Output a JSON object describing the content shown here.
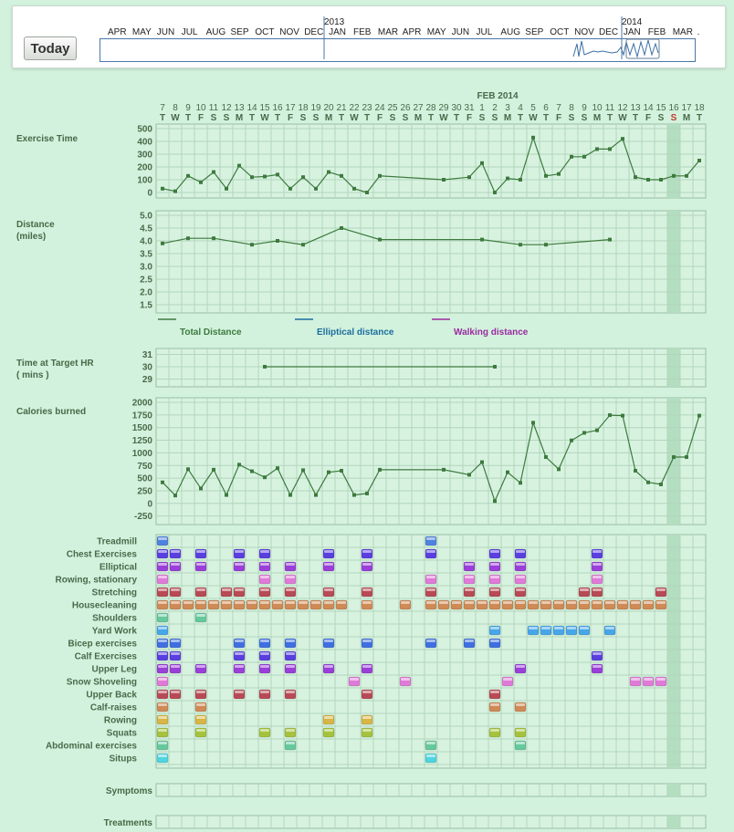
{
  "toolbar": {
    "today_label": "Today"
  },
  "navigator": {
    "months": [
      "APR",
      "MAY",
      "JUN",
      "JUL",
      "AUG",
      "SEP",
      "OCT",
      "NOV",
      "DEC",
      "JAN",
      "FEB",
      "MAR",
      "APR",
      "MAY",
      "JUN",
      "JUL",
      "AUG",
      "SEP",
      "OCT",
      "NOV",
      "DEC",
      "JAN",
      "FEB",
      "MAR",
      "."
    ],
    "years": [
      "2013",
      "2014"
    ]
  },
  "timeline": {
    "month_label": "FEB 2014",
    "day_numbers": [
      "7",
      "8",
      "9",
      "10",
      "11",
      "12",
      "13",
      "14",
      "15",
      "16",
      "17",
      "18",
      "19",
      "20",
      "21",
      "22",
      "23",
      "24",
      "25",
      "26",
      "27",
      "28",
      "29",
      "30",
      "31",
      "1",
      "2",
      "3",
      "4",
      "5",
      "6",
      "7",
      "8",
      "9",
      "10",
      "11",
      "12",
      "13",
      "14",
      "15",
      "16",
      "17",
      "18"
    ],
    "weekdays": [
      "T",
      "W",
      "T",
      "F",
      "S",
      "S",
      "M",
      "T",
      "W",
      "T",
      "F",
      "S",
      "S",
      "M",
      "T",
      "W",
      "T",
      "F",
      "S",
      "S",
      "M",
      "T",
      "W",
      "T",
      "F",
      "S",
      "S",
      "M",
      "T",
      "W",
      "T",
      "F",
      "S",
      "S",
      "M",
      "T",
      "W",
      "T",
      "F",
      "S",
      "S",
      "M",
      "T"
    ],
    "today_index": 40
  },
  "charts": {
    "exercise": {
      "label": "Exercise Time",
      "ticks": [
        "500",
        "400",
        "300",
        "200",
        "100",
        "0"
      ]
    },
    "distance": {
      "label_line1": "Distance",
      "label_line2": "(miles)",
      "ticks": [
        "5.0",
        "4.5",
        "4.0",
        "3.5",
        "3.0",
        "2.5",
        "2.0",
        "1.5"
      ]
    },
    "target_hr": {
      "label_line1": "Time at Target HR",
      "label_line2": "( mins )",
      "ticks": [
        "31",
        "30",
        "29"
      ]
    },
    "calories": {
      "label": "Calories burned",
      "ticks": [
        "2000",
        "1750",
        "1500",
        "1250",
        "1000",
        "750",
        "500",
        "250",
        "0",
        "-250"
      ]
    }
  },
  "legend": {
    "total": {
      "label": "Total Distance",
      "color": "#3e7a3e"
    },
    "elliptical": {
      "label": "Elliptical distance",
      "color": "#1b6d9e"
    },
    "walking": {
      "label": "Walking distance",
      "color": "#9b2aa0"
    }
  },
  "chart_data": [
    {
      "type": "line",
      "title": "Exercise Time",
      "ylim": [
        0,
        500
      ],
      "points": [
        [
          0,
          30
        ],
        [
          1,
          10
        ],
        [
          2,
          130
        ],
        [
          3,
          80
        ],
        [
          4,
          160
        ],
        [
          5,
          30
        ],
        [
          6,
          210
        ],
        [
          7,
          120
        ],
        [
          8,
          125
        ],
        [
          9,
          140
        ],
        [
          10,
          30
        ],
        [
          11,
          120
        ],
        [
          12,
          30
        ],
        [
          13,
          160
        ],
        [
          14,
          130
        ],
        [
          15,
          30
        ],
        [
          16,
          0
        ],
        [
          17,
          130
        ],
        [
          22,
          100
        ],
        [
          24,
          120
        ],
        [
          25,
          230
        ],
        [
          26,
          0
        ],
        [
          27,
          110
        ],
        [
          28,
          100
        ],
        [
          29,
          430
        ],
        [
          30,
          130
        ],
        [
          31,
          145
        ],
        [
          32,
          280
        ],
        [
          33,
          280
        ],
        [
          34,
          340
        ],
        [
          35,
          340
        ],
        [
          36,
          420
        ],
        [
          37,
          120
        ],
        [
          38,
          100
        ],
        [
          39,
          100
        ],
        [
          40,
          130
        ],
        [
          41,
          130
        ],
        [
          42,
          250
        ]
      ]
    },
    {
      "type": "line",
      "title": "Distance",
      "ylim": [
        1.5,
        5.0
      ],
      "series": [
        {
          "name": "Total Distance",
          "points": [
            [
              0,
              3.9
            ],
            [
              2,
              4.1
            ],
            [
              4,
              4.1
            ],
            [
              7,
              3.85
            ],
            [
              9,
              4.0
            ],
            [
              11,
              3.85
            ],
            [
              14,
              4.5
            ],
            [
              17,
              4.05
            ],
            [
              25,
              4.05
            ],
            [
              28,
              3.85
            ],
            [
              30,
              3.85
            ],
            [
              35,
              4.05
            ]
          ]
        },
        {
          "name": "Elliptical distance",
          "points": []
        },
        {
          "name": "Walking distance",
          "points": []
        }
      ]
    },
    {
      "type": "line",
      "title": "Time at Target HR",
      "ylim": [
        29,
        31
      ],
      "points": [
        [
          8,
          30
        ],
        [
          26,
          30
        ]
      ]
    },
    {
      "type": "line",
      "title": "Calories burned",
      "ylim": [
        -250,
        2000
      ],
      "points": [
        [
          0,
          420
        ],
        [
          1,
          160
        ],
        [
          2,
          680
        ],
        [
          3,
          300
        ],
        [
          4,
          670
        ],
        [
          5,
          170
        ],
        [
          6,
          770
        ],
        [
          7,
          640
        ],
        [
          8,
          520
        ],
        [
          9,
          700
        ],
        [
          10,
          170
        ],
        [
          11,
          660
        ],
        [
          12,
          170
        ],
        [
          13,
          620
        ],
        [
          14,
          650
        ],
        [
          15,
          170
        ],
        [
          16,
          200
        ],
        [
          17,
          670
        ],
        [
          22,
          670
        ],
        [
          24,
          570
        ],
        [
          25,
          820
        ],
        [
          26,
          50
        ],
        [
          27,
          620
        ],
        [
          28,
          410
        ],
        [
          29,
          1600
        ],
        [
          30,
          920
        ],
        [
          31,
          680
        ],
        [
          32,
          1250
        ],
        [
          33,
          1400
        ],
        [
          34,
          1450
        ],
        [
          35,
          1750
        ],
        [
          36,
          1740
        ],
        [
          37,
          650
        ],
        [
          38,
          420
        ],
        [
          39,
          380
        ],
        [
          40,
          920
        ],
        [
          41,
          920
        ],
        [
          42,
          1740
        ]
      ]
    },
    {
      "type": "table",
      "title": "Activities",
      "rows": [
        {
          "name": "Treadmill",
          "color": "#4f82e0",
          "days": [
            0,
            21
          ]
        },
        {
          "name": "Chest Exercises",
          "color": "#5a3fe0",
          "days": [
            0,
            1,
            3,
            6,
            8,
            13,
            16,
            21,
            26,
            28,
            34
          ]
        },
        {
          "name": "Elliptical",
          "color": "#9a3fd8",
          "days": [
            0,
            1,
            3,
            6,
            8,
            10,
            13,
            16,
            24,
            26,
            28,
            34
          ]
        },
        {
          "name": "Rowing, stationary",
          "color": "#e07ad8",
          "days": [
            0,
            8,
            10,
            21,
            24,
            26,
            28,
            34
          ]
        },
        {
          "name": "Stretching",
          "color": "#b84a55",
          "days": [
            0,
            1,
            3,
            5,
            6,
            8,
            10,
            13,
            16,
            21,
            24,
            26,
            28,
            33,
            34,
            39
          ]
        },
        {
          "name": "Housecleaning",
          "color": "#cf8a55",
          "days": [
            0,
            1,
            2,
            3,
            4,
            5,
            6,
            7,
            8,
            9,
            10,
            11,
            12,
            13,
            14,
            16,
            19,
            21,
            22,
            23,
            24,
            25,
            26,
            27,
            28,
            29,
            30,
            31,
            32,
            33,
            34,
            35,
            36,
            37,
            38,
            39
          ]
        },
        {
          "name": "Shoulders",
          "color": "#66c99e",
          "days": [
            0,
            3
          ]
        },
        {
          "name": "Yard Work",
          "color": "#46a6e8",
          "days": [
            0,
            26,
            29,
            30,
            31,
            32,
            33,
            35
          ]
        },
        {
          "name": "Bicep exercises",
          "color": "#3f6fe0",
          "days": [
            0,
            1,
            6,
            8,
            10,
            13,
            16,
            21,
            24,
            26
          ]
        },
        {
          "name": "Calf Exercises",
          "color": "#5a3fe0",
          "days": [
            0,
            1,
            6,
            8,
            10,
            34
          ]
        },
        {
          "name": "Upper Leg",
          "color": "#9a3fd8",
          "days": [
            0,
            1,
            3,
            6,
            8,
            10,
            13,
            16,
            28,
            34
          ]
        },
        {
          "name": "Snow Shoveling",
          "color": "#e07ad8",
          "days": [
            0,
            15,
            19,
            27,
            37,
            38,
            39
          ]
        },
        {
          "name": "Upper Back",
          "color": "#b84a55",
          "days": [
            0,
            1,
            3,
            6,
            8,
            10,
            16,
            26
          ]
        },
        {
          "name": "Calf-raises",
          "color": "#cf8a55",
          "days": [
            0,
            3,
            26,
            28
          ]
        },
        {
          "name": "Rowing",
          "color": "#d8b545",
          "days": [
            0,
            3,
            13,
            16
          ]
        },
        {
          "name": "Squats",
          "color": "#a4c23b",
          "days": [
            0,
            3,
            8,
            10,
            13,
            16,
            26,
            28
          ]
        },
        {
          "name": "Abdominal exercises",
          "color": "#66c99e",
          "days": [
            0,
            10,
            21,
            28
          ]
        },
        {
          "name": "Situps",
          "color": "#4fd4e0",
          "days": [
            0,
            21
          ]
        }
      ]
    }
  ],
  "sections": {
    "symptoms": "Symptoms",
    "treatments": "Treatments"
  }
}
